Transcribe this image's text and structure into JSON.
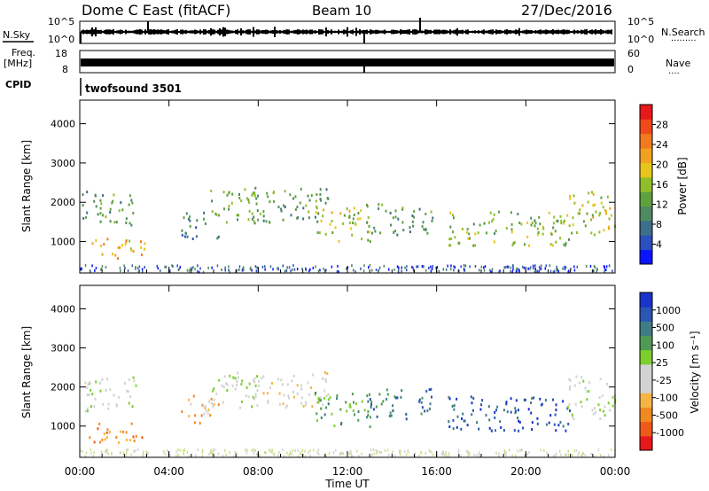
{
  "header": {
    "station": "Dome C East (fitACF)",
    "beam": "Beam 10",
    "date": "27/Dec/2016"
  },
  "top_panels": {
    "nsky_label": "N.Sky",
    "nsearch_label": "N.Search",
    "nsearch_dots": "·········",
    "noise_ticks": [
      "10^5",
      "10^0"
    ],
    "freq_label_1": "Freq.",
    "freq_label_2": "[MHz]",
    "freq_ticks": [
      "18",
      "8"
    ],
    "nave_label": "Nave",
    "nave_dots": "····",
    "nave_ticks": [
      "60",
      "0"
    ],
    "cpid_label": "CPID",
    "cpid_value": "twofsound 3501"
  },
  "colors": {
    "power_scale": [
      "#0a14ff",
      "#2a4fbf",
      "#3d6e8a",
      "#4f8a60",
      "#5fa03f",
      "#8fbe2a",
      "#e7c51c",
      "#f2a020",
      "#f07a1e",
      "#ef4a1a",
      "#e8181a"
    ],
    "velocity_scale": [
      "#e8181a",
      "#ee5a1a",
      "#f08a20",
      "#f5b544",
      "#d3d3d3",
      "#d3d3d3",
      "#7ccf2e",
      "#4f9a55",
      "#3f7d86",
      "#2a56b4",
      "#1a33c8"
    ]
  },
  "chart_data": [
    {
      "type": "heatmap",
      "name": "power",
      "ylabel": "Slant Range [km]",
      "xlabel": "",
      "xlim": [
        0,
        24
      ],
      "ylim": [
        200,
        4600
      ],
      "y_ticks": [
        "4000",
        "3000",
        "2000",
        "1000"
      ],
      "y_tick_values": [
        4000,
        3000,
        2000,
        1000
      ],
      "colorbar_label": "Power [dB]",
      "colorbar_ticks": [
        "28",
        "24",
        "20",
        "16",
        "12",
        "8",
        "4"
      ],
      "colorbar_values": [
        28,
        24,
        20,
        16,
        12,
        8,
        4
      ],
      "colorbar_range": [
        0,
        32
      ],
      "echo_regions": [
        {
          "t0": 0.1,
          "t1": 2.5,
          "r0": 1400,
          "r1": 2300,
          "level": 10
        },
        {
          "t0": 0.4,
          "t1": 3.0,
          "r0": 600,
          "r1": 1100,
          "level": 20
        },
        {
          "t0": 4.5,
          "t1": 6.2,
          "r0": 1100,
          "r1": 1800,
          "level": 8
        },
        {
          "t0": 5.6,
          "t1": 8.0,
          "r0": 1500,
          "r1": 2400,
          "level": 12
        },
        {
          "t0": 7.8,
          "t1": 11.2,
          "r0": 1500,
          "r1": 2400,
          "level": 11
        },
        {
          "t0": 10.5,
          "t1": 13.0,
          "r0": 1000,
          "r1": 1900,
          "level": 16
        },
        {
          "t0": 12.8,
          "t1": 15.8,
          "r0": 1200,
          "r1": 2000,
          "level": 10
        },
        {
          "t0": 16.5,
          "t1": 22.0,
          "r0": 900,
          "r1": 1800,
          "level": 14
        },
        {
          "t0": 21.8,
          "t1": 24.0,
          "r0": 1200,
          "r1": 2300,
          "level": 16
        }
      ]
    },
    {
      "type": "heatmap",
      "name": "velocity",
      "ylabel": "Slant Range [km]",
      "xlabel": "Time UT",
      "x_ticks": [
        "00:00",
        "04:00",
        "08:00",
        "12:00",
        "16:00",
        "20:00",
        "00:00"
      ],
      "x_tick_values": [
        0,
        4,
        8,
        12,
        16,
        20,
        24
      ],
      "xlim": [
        0,
        24
      ],
      "ylim": [
        200,
        4600
      ],
      "y_ticks": [
        "4000",
        "3000",
        "2000",
        "1000"
      ],
      "y_tick_values": [
        4000,
        3000,
        2000,
        1000
      ],
      "colorbar_label": "Velocity [m s⁻¹]",
      "colorbar_ticks": [
        "1000",
        "500",
        "100",
        "25",
        "-25",
        "-100",
        "-500",
        "-1000"
      ],
      "echo_regions": [
        {
          "t0": 0.1,
          "t1": 2.5,
          "r0": 1400,
          "r1": 2300,
          "level": 5
        },
        {
          "t0": 0.4,
          "t1": 3.0,
          "r0": 600,
          "r1": 1100,
          "level": 2
        },
        {
          "t0": 4.5,
          "t1": 6.2,
          "r0": 1100,
          "r1": 1800,
          "level": 3
        },
        {
          "t0": 5.6,
          "t1": 8.0,
          "r0": 1500,
          "r1": 2400,
          "level": 5
        },
        {
          "t0": 7.8,
          "t1": 11.2,
          "r0": 1500,
          "r1": 2400,
          "level": 4
        },
        {
          "t0": 10.5,
          "t1": 13.0,
          "r0": 1000,
          "r1": 1900,
          "level": 7
        },
        {
          "t0": 12.8,
          "t1": 15.8,
          "r0": 1200,
          "r1": 2000,
          "level": 8
        },
        {
          "t0": 16.5,
          "t1": 22.0,
          "r0": 900,
          "r1": 1800,
          "level": 9
        },
        {
          "t0": 21.8,
          "t1": 24.0,
          "r0": 1200,
          "r1": 2300,
          "level": 5
        }
      ]
    }
  ]
}
